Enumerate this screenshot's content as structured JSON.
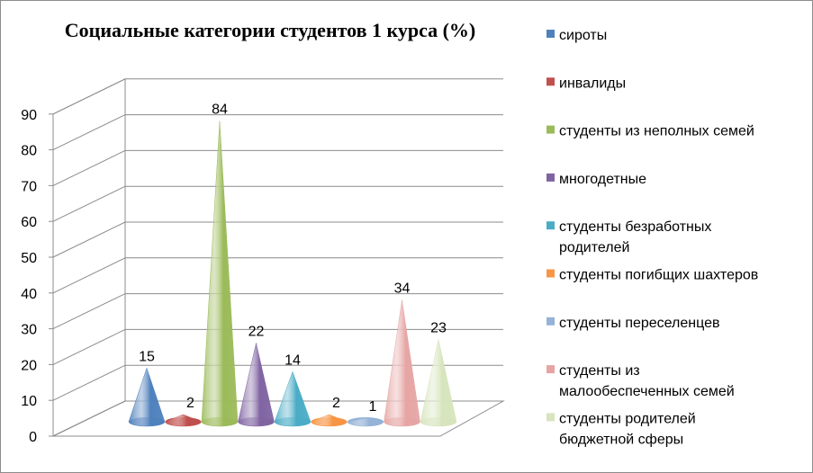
{
  "chart_data": {
    "type": "bar",
    "shape": "cone",
    "title": "Социальные категории студентов 1 курса (%)",
    "xlabel": "",
    "ylabel": "",
    "ylim": [
      0,
      90
    ],
    "yticks": [
      0,
      10,
      20,
      30,
      40,
      50,
      60,
      70,
      80,
      90
    ],
    "grid": true,
    "legend_position": "right",
    "series": [
      {
        "name": "сироты",
        "value": 15,
        "color": "#4f81bd"
      },
      {
        "name": "инвалиды",
        "value": 2,
        "color": "#c0504d"
      },
      {
        "name": "студенты из неполных семей",
        "value": 84,
        "color": "#9bbb59"
      },
      {
        "name": "многодетные",
        "value": 22,
        "color": "#8064a2"
      },
      {
        "name": "студенты безработных родителей",
        "value": 14,
        "color": "#4bacc6"
      },
      {
        "name": "студенты погибщих шахтеров",
        "value": 2,
        "color": "#f79646"
      },
      {
        "name": "студенты переселенцев",
        "value": 1,
        "color": "#95b3d7"
      },
      {
        "name": "студенты из малообеспеченных семей",
        "value": 34,
        "color": "#e6a5a4"
      },
      {
        "name": "студенты родителей бюджетной сферы",
        "value": 23,
        "color": "#d7e4bd"
      }
    ],
    "legend_lines": [
      [
        "сироты"
      ],
      [
        "инвалиды"
      ],
      [
        "студенты из неполных семей"
      ],
      [
        "многодетные"
      ],
      [
        "студенты безработных",
        "родителей"
      ],
      [
        "студенты погибщих шахтеров"
      ],
      [
        "студенты переселенцев"
      ],
      [
        "студенты из",
        "малообеспеченных семей"
      ],
      [
        "студенты родителей",
        "бюджетной сферы"
      ]
    ]
  }
}
